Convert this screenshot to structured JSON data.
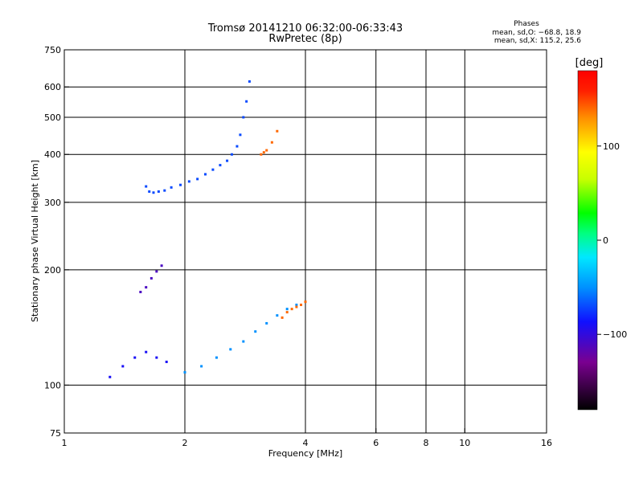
{
  "chart_data": {
    "type": "scatter",
    "title": "Tromsø 20141210 06:32:00-06:33:43",
    "subtitle": "RwPretec (8p)",
    "xlabel": "Frequency [MHz]",
    "ylabel": "Stationary phase Virtual Height [km]",
    "x_scale": "log2",
    "y_scale": "log",
    "xlim": [
      1,
      16
    ],
    "ylim": [
      75,
      750
    ],
    "x_ticks": [
      1,
      2,
      4,
      6,
      8,
      10,
      16
    ],
    "x_tick_labels": [
      "1",
      "2",
      "4",
      "6",
      "8",
      "10",
      "16"
    ],
    "x_grid": [
      2,
      4,
      6,
      8,
      10
    ],
    "y_ticks": [
      75,
      100,
      200,
      300,
      400,
      500,
      600,
      750
    ],
    "y_tick_labels": [
      "75",
      "100",
      "200",
      "300",
      "400",
      "500",
      "600",
      "750"
    ],
    "y_grid": [
      100,
      200,
      300,
      400,
      500,
      600
    ],
    "grid": true,
    "stats": {
      "heading": "Phases",
      "line1": "mean, sd,O: −68.8, 18.9",
      "line2": "mean, sd,X: 115.2, 25.6"
    },
    "colorbar": {
      "label": "[deg]",
      "range": [
        -180,
        180
      ],
      "ticks": [
        100,
        0,
        -100
      ],
      "tick_labels": [
        "100",
        "0",
        "−100"
      ]
    },
    "traces": [
      {
        "x": [
          1.6,
          1.63,
          1.67,
          1.72,
          1.78,
          1.85,
          1.95,
          2.05,
          2.15,
          2.25,
          2.35,
          2.45,
          2.55,
          2.62,
          2.7,
          2.75,
          2.8,
          2.85,
          2.9
        ],
        "y": [
          330,
          320,
          318,
          320,
          322,
          328,
          333,
          340,
          345,
          355,
          365,
          375,
          385,
          400,
          420,
          450,
          500,
          550,
          620
        ],
        "phase": -70
      },
      {
        "x": [
          2.0,
          2.2,
          2.4,
          2.6,
          2.8,
          3.0,
          3.2,
          3.4,
          3.6,
          3.8
        ],
        "y": [
          108,
          112,
          118,
          124,
          130,
          138,
          145,
          152,
          158,
          162
        ],
        "phase": -50
      },
      {
        "x": [
          3.1,
          3.15,
          3.2,
          3.3,
          3.4
        ],
        "y": [
          400,
          405,
          410,
          430,
          460
        ],
        "phase": 140
      },
      {
        "x": [
          3.5,
          3.6,
          3.7,
          3.8,
          3.9,
          4.0
        ],
        "y": [
          150,
          155,
          158,
          160,
          162,
          165
        ],
        "phase": 140
      },
      {
        "x": [
          1.55,
          1.6,
          1.65,
          1.7,
          1.75
        ],
        "y": [
          175,
          180,
          190,
          198,
          205
        ],
        "phase": -110
      },
      {
        "x": [
          1.3,
          1.4,
          1.5,
          1.6,
          1.7,
          1.8
        ],
        "y": [
          105,
          112,
          118,
          122,
          118,
          115
        ],
        "phase": -90
      }
    ]
  }
}
